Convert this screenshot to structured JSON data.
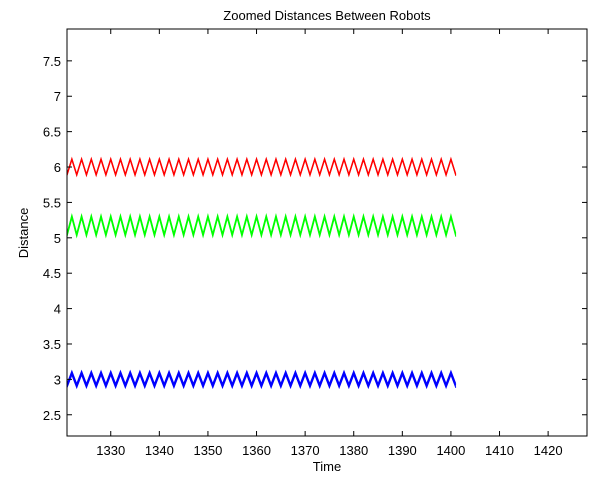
{
  "chart_data": {
    "type": "line",
    "title": "Zoomed Distances Between Robots",
    "xlabel": "Time",
    "ylabel": "Distance",
    "xlim": [
      1321,
      1428
    ],
    "ylim": [
      2.2,
      7.95
    ],
    "xticks": [
      1330,
      1340,
      1350,
      1360,
      1370,
      1380,
      1390,
      1400,
      1410,
      1420
    ],
    "yticks": [
      2.5,
      3,
      3.5,
      4,
      4.5,
      5,
      5.5,
      6,
      6.5,
      7,
      7.5
    ],
    "xtick_labels": [
      "1330",
      "1340",
      "1350",
      "1360",
      "1370",
      "1380",
      "1390",
      "1400",
      "1410",
      "1420"
    ],
    "ytick_labels": [
      "2.5",
      "3",
      "3.5",
      "4",
      "4.5",
      "5",
      "5.5",
      "6",
      "6.5",
      "7",
      "7.5"
    ],
    "grid": false,
    "series": [
      {
        "color": "#ff0000",
        "x_start": 1321,
        "x_end": 1401,
        "period": 2,
        "center": 6.0,
        "amplitude": 0.11,
        "band_width": 0.03
      },
      {
        "color": "#00ff00",
        "x_start": 1321,
        "x_end": 1401,
        "period": 2,
        "center": 5.17,
        "amplitude": 0.13,
        "band_width": 0.05
      },
      {
        "color": "#0000ff",
        "x_start": 1321,
        "x_end": 1401,
        "period": 2,
        "center": 3.0,
        "amplitude": 0.09,
        "band_width": 0.06
      }
    ]
  }
}
